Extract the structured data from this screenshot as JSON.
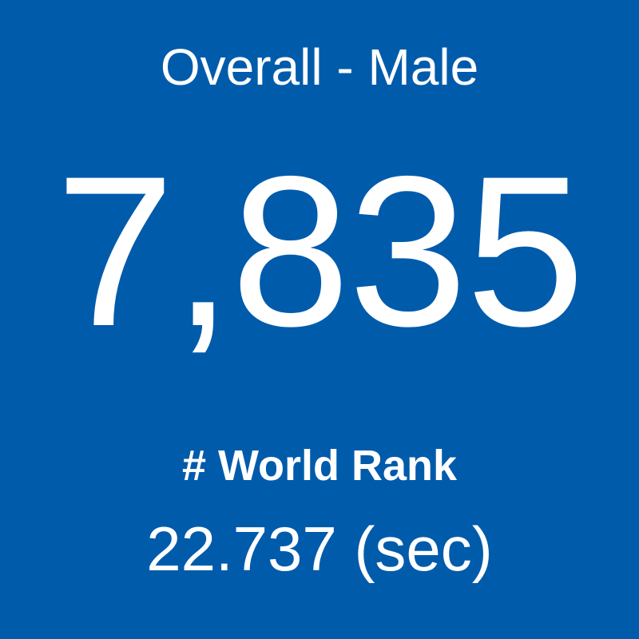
{
  "tile": {
    "title": "Overall - Male",
    "value": "7,835",
    "label": "# World Rank",
    "time": "22.737 (sec)"
  }
}
